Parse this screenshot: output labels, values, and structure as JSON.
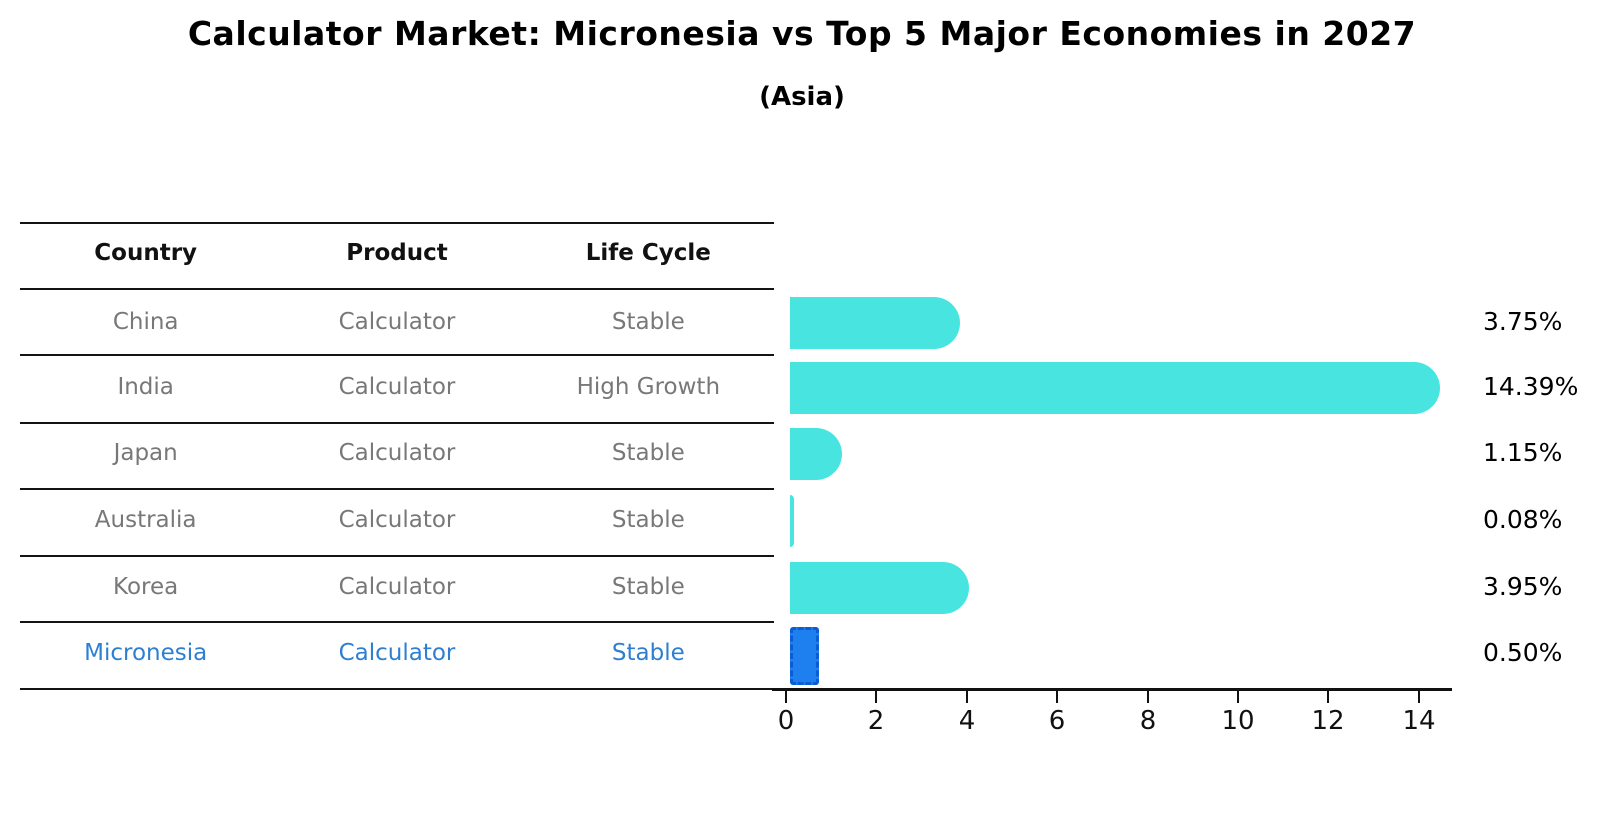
{
  "title": "Calculator Market: Micronesia vs Top 5 Major Economies in 2027",
  "subtitle": "(Asia)",
  "table": {
    "headers": [
      "Country",
      "Product",
      "Life Cycle"
    ],
    "rows": [
      {
        "country": "China",
        "product": "Calculator",
        "life_cycle": "Stable"
      },
      {
        "country": "India",
        "product": "Calculator",
        "life_cycle": "High Growth"
      },
      {
        "country": "Japan",
        "product": "Calculator",
        "life_cycle": "Stable"
      },
      {
        "country": "Australia",
        "product": "Calculator",
        "life_cycle": "Stable"
      },
      {
        "country": "Korea",
        "product": "Calculator",
        "life_cycle": "Stable"
      },
      {
        "country": "Micronesia",
        "product": "Calculator",
        "life_cycle": "Stable"
      }
    ]
  },
  "chart_data": {
    "type": "bar",
    "orientation": "horizontal",
    "title": "Calculator Market: Micronesia vs Top 5 Major Economies in 2027",
    "subtitle": "(Asia)",
    "categories": [
      "China",
      "India",
      "Japan",
      "Australia",
      "Korea",
      "Micronesia"
    ],
    "values": [
      3.75,
      14.39,
      1.15,
      0.08,
      3.95,
      0.5
    ],
    "value_labels": [
      "3.75%",
      "14.39%",
      "1.15%",
      "0.08%",
      "3.95%",
      "0.50%"
    ],
    "xticks": [
      "0",
      "2",
      "4",
      "6",
      "8",
      "10",
      "12",
      "14"
    ],
    "xtick_values": [
      0,
      2,
      4,
      6,
      8,
      10,
      12,
      14
    ],
    "xlim": [
      0,
      14.7
    ],
    "grid": false,
    "legend": "none",
    "highlight_index": 5,
    "colors": {
      "bar": "#48E5E0",
      "highlight_fill": "#1E7FEE",
      "highlight_border": "#0C5CD6",
      "highlight_text": "#2E7FD1",
      "row_text": "#787878",
      "header_text": "#111111"
    }
  }
}
